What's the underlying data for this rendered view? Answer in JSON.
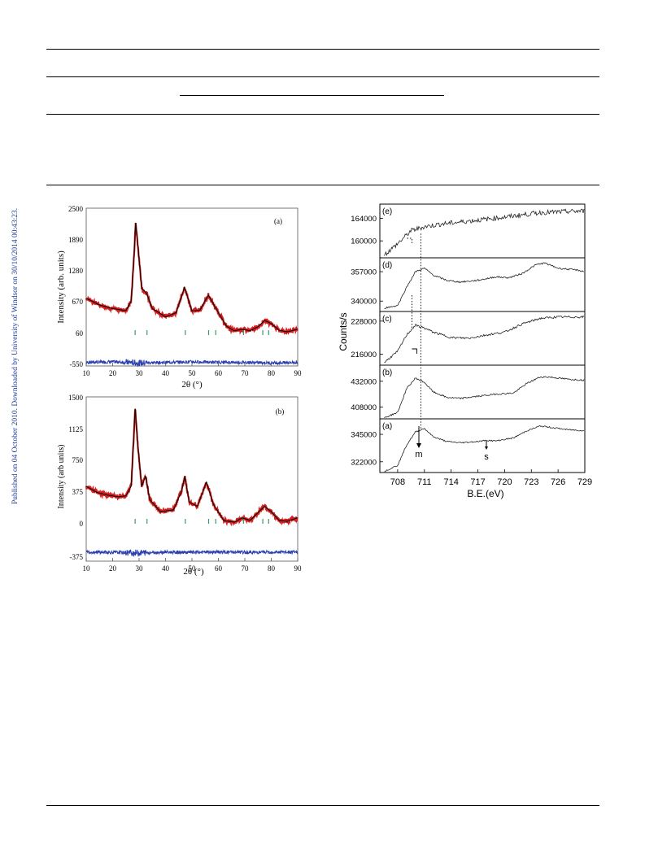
{
  "side_note": "Published on 04 October 2010. Downloaded by University of Windsor on 30/10/2014 00:43:23.",
  "figure_left": {
    "panels": [
      {
        "label": "(a)",
        "ylabel": "Intensity (arb. units)",
        "xlabel": "2θ (°)",
        "xticks": [
          "10",
          "20",
          "30",
          "40",
          "50",
          "60",
          "70",
          "80",
          "90"
        ],
        "yticks": [
          "2500",
          "1890",
          "1280",
          "670",
          "60",
          "-550"
        ]
      },
      {
        "label": "(b)",
        "ylabel": "Intensity (arb units)",
        "xlabel": "2θ (°)",
        "xticks": [
          "10",
          "20",
          "30",
          "40",
          "50",
          "60",
          "70",
          "80",
          "90"
        ],
        "yticks": [
          "1500",
          "1125",
          "750",
          "375",
          "0",
          "-375"
        ]
      }
    ]
  },
  "figure_right": {
    "ylabel": "Counts/s",
    "xlabel": "B.E.(eV)",
    "xticks": [
      "708",
      "711",
      "714",
      "717",
      "720",
      "723",
      "726",
      "729"
    ],
    "panels": [
      {
        "label": "(e)",
        "yticks": [
          "164000",
          "160000"
        ]
      },
      {
        "label": "(d)",
        "yticks": [
          "357000",
          "340000"
        ]
      },
      {
        "label": "(c)",
        "yticks": [
          "228000",
          "216000"
        ]
      },
      {
        "label": "(b)",
        "yticks": [
          "432000",
          "408000"
        ]
      },
      {
        "label": "(a)",
        "yticks": [
          "345000",
          "322000"
        ]
      }
    ],
    "annotations": {
      "main": "m",
      "satellite": "s"
    }
  },
  "chart_data": [
    {
      "type": "line",
      "title": "(a)",
      "xlabel": "2θ (°)",
      "ylabel": "Intensity (arb. units)",
      "xlim": [
        10,
        90
      ],
      "ylim": [
        -550,
        2500
      ],
      "colors": {
        "observed": "#d42020",
        "calculated": "#000000",
        "difference": "#2a3fb0",
        "reflections": "#3a9a6a"
      },
      "series": [
        {
          "x": [
            10,
            15,
            20,
            25,
            27,
            28,
            28.7,
            29.5,
            31,
            32.8,
            35,
            40,
            44,
            47.2,
            50,
            53,
            56.2,
            59,
            63,
            66,
            69,
            72,
            75,
            77.5,
            80,
            83,
            86,
            90
          ],
          "values": [
            760,
            630,
            560,
            520,
            700,
            1500,
            2230,
            1800,
            950,
            860,
            560,
            400,
            480,
            970,
            510,
            530,
            820,
            570,
            220,
            130,
            160,
            130,
            210,
            330,
            270,
            140,
            110,
            160
          ]
        },
        {
          "x": [
            10,
            20,
            30,
            40,
            50,
            60,
            70,
            80,
            90
          ],
          "values": [
            -480,
            -470,
            -490,
            -480,
            -470,
            -480,
            -480,
            -490,
            -480
          ]
        }
      ],
      "reflections": [
        28.5,
        33,
        47.5,
        56.3,
        59,
        69.5,
        76.8,
        79
      ]
    },
    {
      "type": "line",
      "title": "(b)",
      "xlabel": "2θ (°)",
      "ylabel": "Intensity (arb units)",
      "xlim": [
        10,
        90
      ],
      "ylim": [
        -375,
        1500
      ],
      "colors": {
        "observed": "#d42020",
        "calculated": "#000000",
        "difference": "#2a3fb0",
        "reflections": "#3a9a6a"
      },
      "series": [
        {
          "x": [
            10,
            14,
            18,
            22,
            25,
            27,
            28,
            28.5,
            29.5,
            31,
            32.5,
            34,
            38,
            43,
            46,
            47.3,
            49,
            52,
            55.5,
            58,
            62,
            66,
            69,
            72,
            76,
            77.5,
            80,
            83,
            86,
            90
          ],
          "values": [
            480,
            410,
            380,
            360,
            370,
            480,
            1050,
            1380,
            950,
            480,
            600,
            330,
            190,
            210,
            420,
            590,
            300,
            250,
            530,
            280,
            90,
            70,
            120,
            90,
            210,
            250,
            190,
            90,
            80,
            120
          ]
        },
        {
          "x": [
            10,
            20,
            30,
            40,
            50,
            60,
            70,
            80,
            90
          ],
          "values": [
            -270,
            -275,
            -280,
            -272,
            -275,
            -270,
            -275,
            -272,
            -275
          ]
        }
      ],
      "reflections": [
        28.5,
        33,
        47.5,
        56.3,
        59,
        69.5,
        76.8,
        79
      ]
    },
    {
      "type": "line",
      "title": "(e)",
      "xlabel": "B.E.(eV)",
      "ylabel": "Counts/s",
      "xlim": [
        706,
        729
      ],
      "ylim": [
        157000,
        166500
      ],
      "series": [
        {
          "x": [
            706.5,
            708,
            709.5,
            711,
            713,
            716,
            720,
            724,
            729
          ],
          "values": [
            157500,
            159500,
            161800,
            162500,
            163000,
            163500,
            164200,
            165000,
            165300
          ]
        }
      ]
    },
    {
      "type": "line",
      "title": "(d)",
      "xlabel": "B.E.(eV)",
      "ylabel": "Counts/s",
      "xlim": [
        706,
        729
      ],
      "ylim": [
        334000,
        365000
      ],
      "series": [
        {
          "x": [
            706.5,
            708,
            709,
            710,
            711,
            712,
            713.5,
            715,
            717,
            719,
            720.5,
            722,
            723.5,
            724.5,
            726,
            728,
            729
          ],
          "values": [
            336000,
            337500,
            348000,
            357000,
            359000,
            355000,
            352000,
            351000,
            352000,
            354000,
            353500,
            356000,
            361000,
            362000,
            359000,
            358000,
            357000
          ]
        }
      ]
    },
    {
      "type": "line",
      "title": "(c)",
      "xlabel": "B.E.(eV)",
      "ylabel": "Counts/s",
      "xlim": [
        706,
        729
      ],
      "ylim": [
        212000,
        231500
      ],
      "series": [
        {
          "x": [
            706.5,
            708,
            709,
            710,
            711,
            712,
            714,
            716,
            718,
            720,
            722,
            724,
            726,
            729
          ],
          "values": [
            213000,
            217000,
            223000,
            226500,
            225500,
            224000,
            222000,
            221800,
            223000,
            224000,
            227000,
            229000,
            229500,
            229500
          ]
        }
      ]
    },
    {
      "type": "line",
      "title": "(b)",
      "xlabel": "B.E.(eV)",
      "ylabel": "Counts/s",
      "xlim": [
        706,
        729
      ],
      "ylim": [
        397000,
        447000
      ],
      "series": [
        {
          "x": [
            706.5,
            708,
            709,
            710,
            711,
            712,
            713.5,
            715,
            717,
            719,
            721,
            722.5,
            724,
            725,
            727,
            729
          ],
          "values": [
            398000,
            403000,
            425000,
            435000,
            431000,
            422000,
            417000,
            416000,
            418000,
            420000,
            421000,
            430000,
            436000,
            436000,
            434000,
            433000
          ]
        }
      ]
    },
    {
      "type": "line",
      "title": "(a)",
      "xlabel": "B.E.(eV)",
      "ylabel": "Counts/s",
      "xlim": [
        706,
        729
      ],
      "ylim": [
        313000,
        358000
      ],
      "series": [
        {
          "x": [
            706.5,
            708,
            709,
            710,
            711,
            712,
            713.5,
            715,
            717,
            718,
            719,
            721,
            722.5,
            724,
            725,
            727,
            729
          ],
          "values": [
            314000,
            319000,
            336000,
            347000,
            350000,
            343000,
            339000,
            338000,
            339000,
            340000,
            339500,
            342000,
            348000,
            352000,
            351000,
            349000,
            348000
          ]
        }
      ]
    }
  ]
}
